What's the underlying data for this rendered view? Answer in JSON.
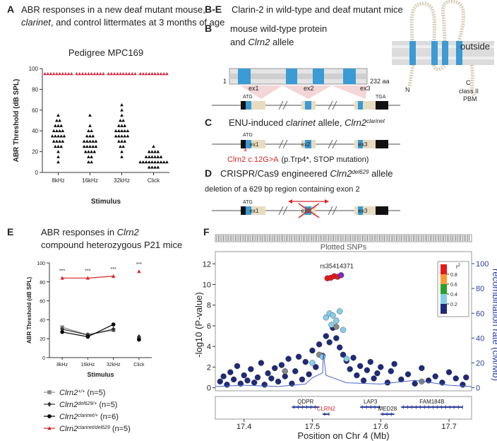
{
  "panel_a": {
    "letter": "A",
    "line1": "ABR responses in a new deaf mutant mouse,",
    "line2_italic": "clarinet",
    "line2_rest": ", and control littermates at 3 months of age"
  },
  "panel_e": {
    "letter": "E",
    "line1_pre": "ABR responses in ",
    "line1_gene": "Clrn2",
    "line2": "compound heterozygous P21 mice"
  },
  "panel_f": {
    "letter": "F"
  },
  "diagram": {
    "letter": "B-E",
    "title": "Clarin-2 in wild-type and deaf mutant mice",
    "b": {
      "letter": "B",
      "line1": "mouse wild-type protein",
      "line2_pre": "and ",
      "line2_gene": "Clrn2",
      "line2_post": " allele",
      "aa_start": "1",
      "aa_end": "232 aa",
      "exons": [
        "ex1",
        "ex2",
        "ex3"
      ],
      "atg": "ATG",
      "tga": "TGA",
      "outside": "outside",
      "n_term": "N",
      "c_term": "C",
      "pbm1": "class II",
      "pbm2": "PBM"
    },
    "c": {
      "letter": "C",
      "pre": "ENU-induced ",
      "allele": "clarinet",
      "mid": " allele, ",
      "gene": "Clrn2",
      "sup": "clarinet",
      "atg": "ATG",
      "exons": [
        "ex1",
        "ex2",
        "ex3"
      ],
      "star": "*",
      "mutation": "Clrn2 c.12G>A",
      "effect": "(p.Trp4*, STOP mutation)"
    },
    "d": {
      "letter": "D",
      "pre": "CRISPR/Cas9 engineered ",
      "gene": "Clrn2",
      "sup": "del629",
      "post": " allele",
      "line2": "deletion of a 629 bp region containing exon 2",
      "atg": "ATG",
      "exons": [
        "ex1",
        "ex2",
        "ex3"
      ]
    }
  },
  "chart_data": [
    {
      "type": "strip",
      "title": "Pedigree MPC169",
      "ylabel": "ABR Threshold (dB SPL)",
      "xlabel": "Stimulus",
      "categories": [
        "8kHz",
        "16kHz",
        "32kHz",
        "Click"
      ],
      "ylim": [
        0,
        100
      ],
      "yticks": [
        0,
        20,
        40,
        60,
        80,
        100
      ],
      "series": [
        {
          "color": "#000000",
          "values": [
            [
              55,
              50,
              50,
              45,
              45,
              45,
              40,
              40,
              40,
              40,
              35,
              35,
              35,
              35,
              35,
              30,
              30,
              30,
              30,
              25,
              25,
              25,
              20,
              15,
              10
            ],
            [
              55,
              45,
              40,
              40,
              35,
              35,
              35,
              30,
              30,
              30,
              30,
              30,
              25,
              25,
              25,
              25,
              25,
              20,
              20,
              20,
              20,
              15,
              15,
              10,
              10
            ],
            [
              65,
              60,
              55,
              50,
              50,
              45,
              45,
              45,
              40,
              40,
              40,
              40,
              40,
              35,
              35,
              35,
              35,
              35,
              30,
              30,
              30,
              25,
              25,
              20,
              15
            ],
            [
              25,
              20,
              20,
              20,
              20,
              15,
              15,
              15,
              15,
              15,
              15,
              10,
              10,
              10,
              10,
              10,
              10,
              10,
              10,
              10,
              10,
              5,
              5,
              5,
              5
            ]
          ]
        },
        {
          "color": "#d7263d",
          "values": [
            [
              95,
              95,
              95,
              95,
              95,
              95,
              95,
              95,
              95,
              95
            ],
            [
              95,
              95,
              95,
              95,
              95,
              95,
              95,
              95,
              95,
              95
            ],
            [
              95,
              95,
              95,
              95,
              95,
              95,
              95,
              95,
              95,
              95
            ],
            [
              95,
              95,
              95,
              95,
              95,
              95,
              95,
              95,
              95,
              95
            ]
          ]
        }
      ]
    },
    {
      "type": "line",
      "ylabel": "ABR Threshold (dB SPL)",
      "xlabel": "Stimulus",
      "categories": [
        "8kHz",
        "16kHz",
        "32kHz",
        "Click"
      ],
      "ylim": [
        0,
        100
      ],
      "yticks": [
        0,
        20,
        40,
        60,
        80,
        100
      ],
      "annotations": [
        "***",
        "***",
        "***",
        "***"
      ],
      "series": [
        {
          "name": "Clrn2",
          "allele": "+/+",
          "n": "(n=5)",
          "color": "#8c8c8c",
          "marker": "square",
          "values": [
            32,
            24,
            29,
            20
          ]
        },
        {
          "name": "Clrn2",
          "allele": "del629/+",
          "n": "(n=5)",
          "color": "#333333",
          "marker": "diamond",
          "values": [
            30,
            24,
            30,
            22
          ]
        },
        {
          "name": "Clrn2",
          "allele": "clarinet/+",
          "n": "(n=6)",
          "color": "#000000",
          "marker": "circle",
          "values": [
            27,
            22,
            35,
            19
          ]
        },
        {
          "name": "Clrn2",
          "allele": "clarinet/del629",
          "n": "(n=5)",
          "color": "#d62728",
          "marker": "triangle",
          "values": [
            84,
            84,
            86,
            91
          ]
        }
      ]
    },
    {
      "type": "scatter",
      "track_title": "Plotted SNPs",
      "lead_label": "rs35414371",
      "ylabel": "-log10 (P-value)",
      "y2label": "recombination rate (cM/Mb)",
      "xlabel": "Position on Chr 4 (Mb)",
      "xlim": [
        17.358,
        17.733
      ],
      "xticks": [
        17.4,
        17.5,
        17.6,
        17.7
      ],
      "ylim": [
        -0.3,
        12.5
      ],
      "yticks": [
        0,
        2,
        4,
        6,
        8,
        10,
        12
      ],
      "y2lim": [
        -2.5,
        104
      ],
      "y2ticks": [
        0,
        20,
        40,
        60,
        80,
        100
      ],
      "legend": {
        "title": "r",
        "sup": "2",
        "ticks": [
          0.2,
          0.4,
          0.6,
          0.8
        ],
        "colors": [
          "#1f2a7a",
          "#87ceeb",
          "#2ca02c",
          "#ff9933",
          "#e31a1c"
        ]
      },
      "series": [
        {
          "color": "#1f2a7a",
          "x": [
            17.365,
            17.37,
            17.375,
            17.38,
            17.385,
            17.39,
            17.395,
            17.4,
            17.405,
            17.41,
            17.415,
            17.42,
            17.425,
            17.43,
            17.435,
            17.44,
            17.445,
            17.45,
            17.455,
            17.46,
            17.465,
            17.47,
            17.475,
            17.48,
            17.485,
            17.49,
            17.495,
            17.5,
            17.505,
            17.51,
            17.515,
            17.52,
            17.525,
            17.53,
            17.535,
            17.54,
            17.545,
            17.55,
            17.555,
            17.56,
            17.565,
            17.57,
            17.575,
            17.58,
            17.585,
            17.59,
            17.595,
            17.6,
            17.61,
            17.615,
            17.62,
            17.63,
            17.64,
            17.65,
            17.66,
            17.67,
            17.68,
            17.69,
            17.7,
            17.71,
            17.72,
            17.725
          ],
          "y": [
            0.6,
            1.1,
            0.3,
            1.5,
            0.8,
            2.1,
            0.4,
            1.2,
            0.7,
            1.8,
            0.5,
            1.0,
            2.4,
            0.3,
            1.4,
            0.9,
            1.9,
            0.6,
            2.2,
            1.1,
            2.8,
            0.4,
            1.6,
            3.0,
            0.8,
            2.5,
            1.3,
            3.6,
            2.0,
            4.2,
            3.1,
            5.0,
            4.4,
            5.8,
            4.8,
            3.9,
            3.2,
            2.6,
            1.8,
            2.9,
            1.2,
            2.1,
            0.7,
            1.7,
            2.5,
            0.9,
            1.4,
            2.0,
            0.5,
            1.6,
            2.3,
            0.8,
            1.3,
            0.4,
            1.9,
            0.7,
            1.1,
            0.5,
            1.5,
            0.9,
            0.3,
            1.0
          ]
        },
        {
          "color": "#888888",
          "x": [
            17.46,
            17.51,
            17.535,
            17.66
          ],
          "y": [
            1.6,
            3.2,
            5.9,
            0.6
          ]
        },
        {
          "color": "#87ceeb",
          "x": [
            17.5,
            17.515,
            17.52,
            17.525,
            17.528,
            17.53,
            17.535,
            17.54,
            17.545,
            17.55
          ],
          "y": [
            2.4,
            3.0,
            6.8,
            7.2,
            6.1,
            7.0,
            6.5,
            7.4,
            5.6,
            2.8
          ]
        },
        {
          "color": "#e31a1c",
          "x": [
            17.522,
            17.527,
            17.532,
            17.537
          ],
          "y": [
            10.6,
            10.65,
            10.8,
            10.75
          ]
        },
        {
          "color": "#7b2cbf",
          "x": [
            17.542
          ],
          "y": [
            10.9
          ]
        },
        {
          "color": "#4a64c8",
          "axis": "y2",
          "x": [
            17.358,
            17.4,
            17.45,
            17.49,
            17.5,
            17.515,
            17.516,
            17.52,
            17.55,
            17.6,
            17.65,
            17.7,
            17.733
          ],
          "y": [
            1,
            2,
            1,
            3,
            8,
            12,
            28,
            10,
            4,
            3,
            6,
            2,
            1
          ]
        }
      ],
      "genes": [
        {
          "name": "QDPR",
          "start": 17.47,
          "end": 17.51,
          "color": "#222222"
        },
        {
          "name": "CLRN2",
          "start": 17.515,
          "end": 17.525,
          "color": "#d62728"
        },
        {
          "name": "LAP3",
          "start": 17.57,
          "end": 17.6,
          "color": "#222222"
        },
        {
          "name": "MED28",
          "start": 17.6,
          "end": 17.62,
          "color": "#222222"
        },
        {
          "name": "FAM184B",
          "start": 17.63,
          "end": 17.72,
          "color": "#222222"
        }
      ]
    }
  ]
}
